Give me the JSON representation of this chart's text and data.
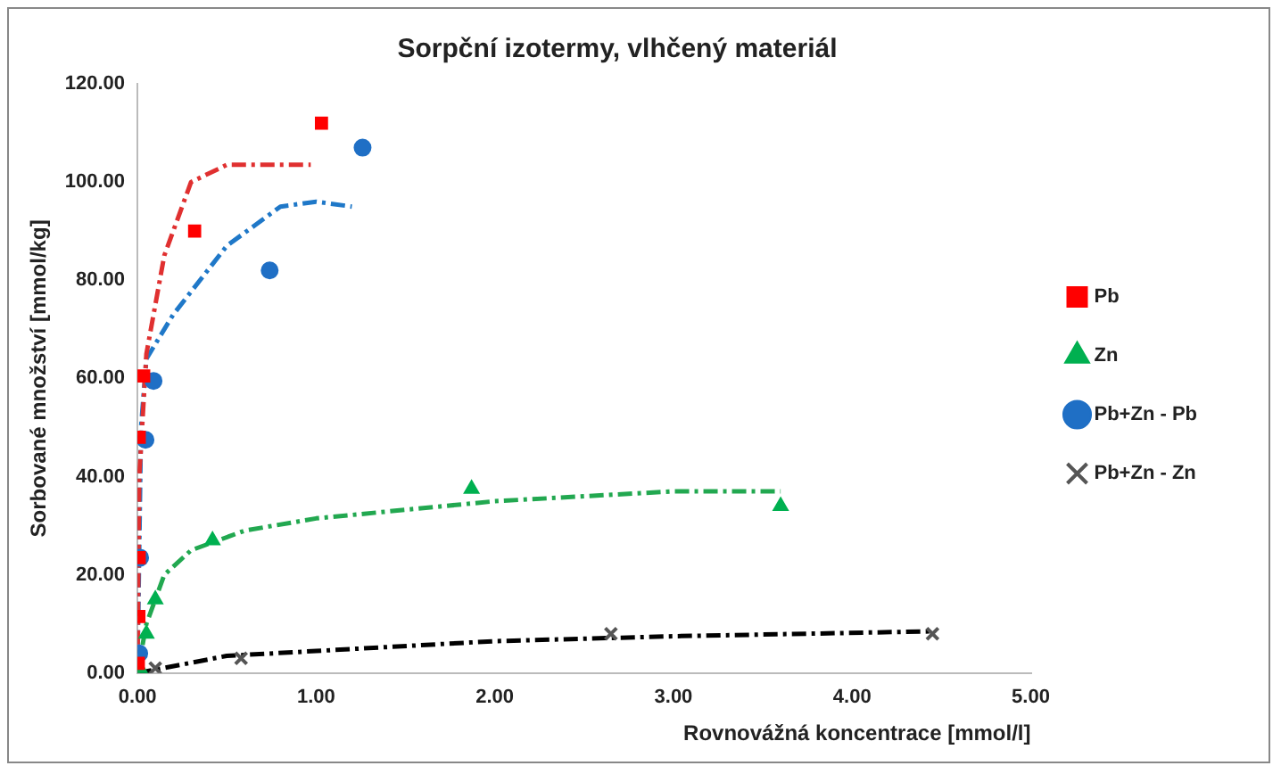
{
  "chart_data": {
    "type": "scatter",
    "title": "Sorpční izotermy, vlhčený materiál",
    "xlabel": "Rovnovážná koncentrace [mmol/l]",
    "ylabel": "Sorbované množství [mmol/kg]",
    "xlim": [
      0,
      5
    ],
    "xticks": [
      {
        "value": 0,
        "label": "0.00"
      },
      {
        "value": 1,
        "label": "1.00"
      },
      {
        "value": 2,
        "label": "2.00"
      },
      {
        "value": 3,
        "label": "3.00"
      },
      {
        "value": 4,
        "label": "4.00"
      },
      {
        "value": 5,
        "label": "5.00"
      }
    ],
    "ylim": [
      0,
      120
    ],
    "yticks": [
      {
        "value": 0,
        "label": "0.00"
      },
      {
        "value": 20,
        "label": "20.00"
      },
      {
        "value": 40,
        "label": "40.00"
      },
      {
        "value": 60,
        "label": "60.00"
      },
      {
        "value": 80,
        "label": "80.00"
      },
      {
        "value": 100,
        "label": "100.00"
      },
      {
        "value": 120,
        "label": "120.00"
      }
    ],
    "grid": false,
    "legend": "right",
    "series": [
      {
        "name": "Pb",
        "type": "scatter",
        "marker": "square",
        "color": "#ff0000",
        "x": [
          0.005,
          0.008,
          0.01,
          0.01,
          0.035,
          0.32,
          1.03
        ],
        "values": [
          2,
          11.5,
          23.5,
          48,
          60.5,
          90,
          112
        ]
      },
      {
        "name": "Zn",
        "type": "scatter",
        "marker": "triangle",
        "color": "#00b050",
        "x": [
          0.02,
          0.05,
          0.1,
          0.42,
          1.87,
          3.6
        ],
        "values": [
          0.5,
          8,
          15,
          27,
          37.5,
          34
        ]
      },
      {
        "name": "Pb+Zn - Pb",
        "type": "scatter",
        "marker": "circle",
        "color": "#1f6fc5",
        "x": [
          0.01,
          0.015,
          0.045,
          0.09,
          0.74,
          1.26
        ],
        "values": [
          4,
          23.5,
          47.5,
          59.5,
          82,
          107
        ]
      },
      {
        "name": "Pb+Zn - Zn",
        "type": "scatter",
        "marker": "cross",
        "color": "#555555",
        "x": [
          0.1,
          0.58,
          2.65,
          4.45
        ],
        "values": [
          1,
          3,
          8,
          8
        ]
      },
      {
        "type": "line",
        "marker": "none",
        "line_style": "dashed",
        "color": "#e03030",
        "x": [
          0,
          0.01,
          0.05,
          0.15,
          0.3,
          0.5,
          0.97
        ],
        "values": [
          0,
          40,
          65,
          85,
          100,
          103.5,
          103.5
        ]
      },
      {
        "type": "line",
        "marker": "none",
        "line_style": "dashed",
        "color": "#1f78c8",
        "x": [
          0,
          0.02,
          0.05,
          0.2,
          0.5,
          0.8,
          1.0,
          1.2
        ],
        "values": [
          0,
          50,
          64,
          73,
          87,
          95,
          96,
          95
        ]
      },
      {
        "type": "line",
        "marker": "none",
        "line_style": "dashed",
        "color": "#22a850",
        "x": [
          0,
          0.05,
          0.15,
          0.3,
          0.6,
          1,
          2,
          3,
          3.6
        ],
        "values": [
          0,
          10,
          20,
          25,
          29,
          31.5,
          35,
          37,
          37
        ]
      },
      {
        "type": "line",
        "marker": "none",
        "line_style": "dashed",
        "color": "#000000",
        "x": [
          0,
          0.5,
          1,
          2,
          3,
          4.45
        ],
        "values": [
          0,
          3.5,
          4.5,
          6.5,
          7.5,
          8.5
        ]
      }
    ]
  }
}
